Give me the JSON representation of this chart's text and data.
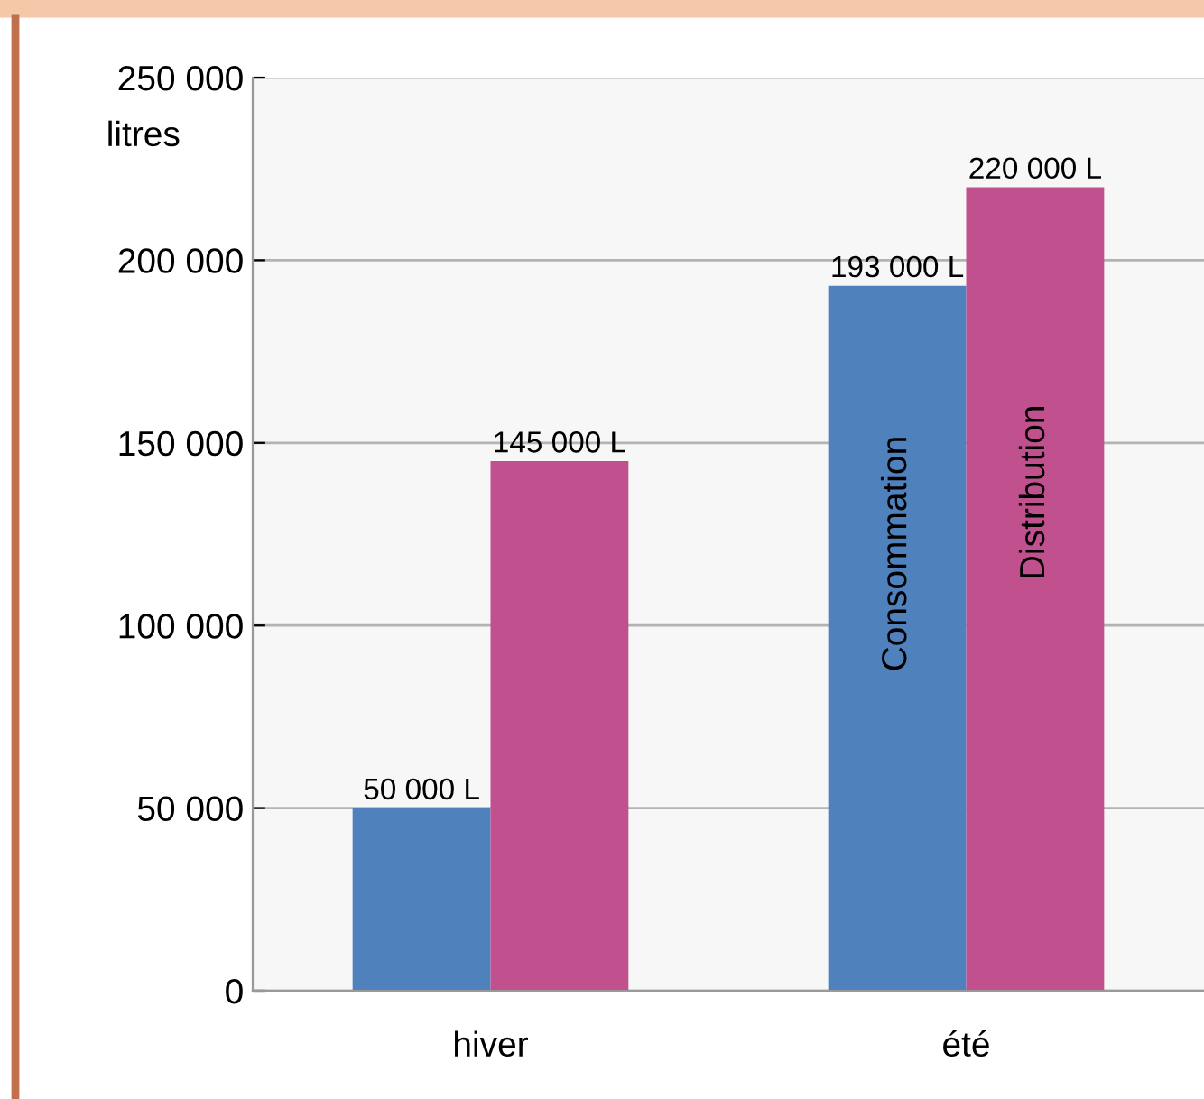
{
  "chart_data": {
    "type": "bar",
    "ylabel": "litres",
    "categories": [
      "hiver",
      "été"
    ],
    "series": [
      {
        "name": "Consommation",
        "color": "#4f81bd",
        "values": [
          50000,
          193000
        ],
        "value_labels": [
          "50 000 L",
          "193 000 L"
        ]
      },
      {
        "name": "Distribution",
        "color": "#c0508e",
        "values": [
          145000,
          220000
        ],
        "value_labels": [
          "145 000 L",
          "220 000 L"
        ]
      }
    ],
    "ylim": [
      0,
      250000
    ],
    "yticks": [
      {
        "value": 0,
        "label": "0"
      },
      {
        "value": 50000,
        "label": "50 000"
      },
      {
        "value": 100000,
        "label": "100 000"
      },
      {
        "value": 150000,
        "label": "150 000"
      },
      {
        "value": 200000,
        "label": "200 000"
      },
      {
        "value": 250000,
        "label": "250 000"
      }
    ],
    "grid": "y",
    "legend": false
  }
}
